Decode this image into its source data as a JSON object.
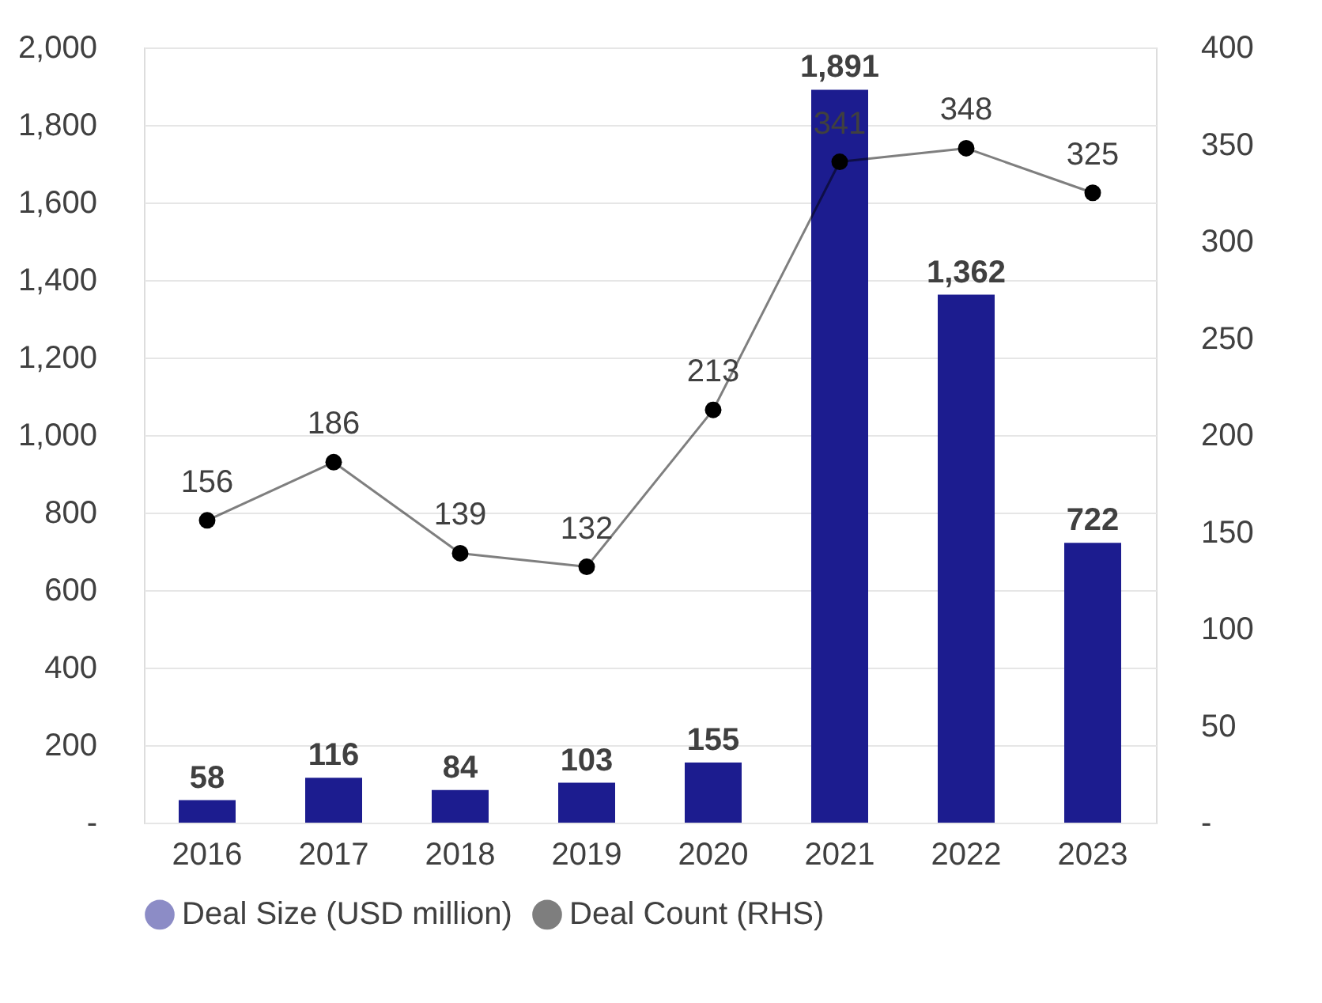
{
  "chart_data": {
    "type": "bar",
    "categories": [
      "2016",
      "2017",
      "2018",
      "2019",
      "2020",
      "2021",
      "2022",
      "2023"
    ],
    "series": [
      {
        "name": "Deal Size (USD million)",
        "color": "#1c1c8f",
        "values": [
          58,
          116,
          84,
          103,
          155,
          1891,
          1362,
          722
        ],
        "value_labels": [
          "58",
          "116",
          "84",
          "103",
          "155",
          "1,891",
          "1,362",
          "722"
        ]
      },
      {
        "name": "Deal Count (RHS)",
        "type": "line",
        "axis": "y2",
        "color": "#000000",
        "marker": "circle",
        "values": [
          156,
          186,
          139,
          132,
          213,
          341,
          348,
          325
        ]
      }
    ],
    "ylim": [
      0,
      2000
    ],
    "yticks": [
      {
        "value": 0,
        "label": "-"
      },
      200,
      400,
      600,
      800,
      {
        "value": 1000,
        "label": "1,000"
      },
      {
        "value": 1200,
        "label": "1,200"
      },
      {
        "value": 1400,
        "label": "1,400"
      },
      {
        "value": 1600,
        "label": "1,600"
      },
      {
        "value": 1800,
        "label": "1,800"
      },
      {
        "value": 2000,
        "label": "2,000"
      }
    ],
    "y2lim": [
      0,
      400
    ],
    "y2ticks": [
      {
        "value": 0,
        "label": "-"
      },
      50,
      100,
      150,
      200,
      250,
      300,
      350,
      400
    ],
    "data_labels": true,
    "grid": "y",
    "legend": "bottom"
  }
}
